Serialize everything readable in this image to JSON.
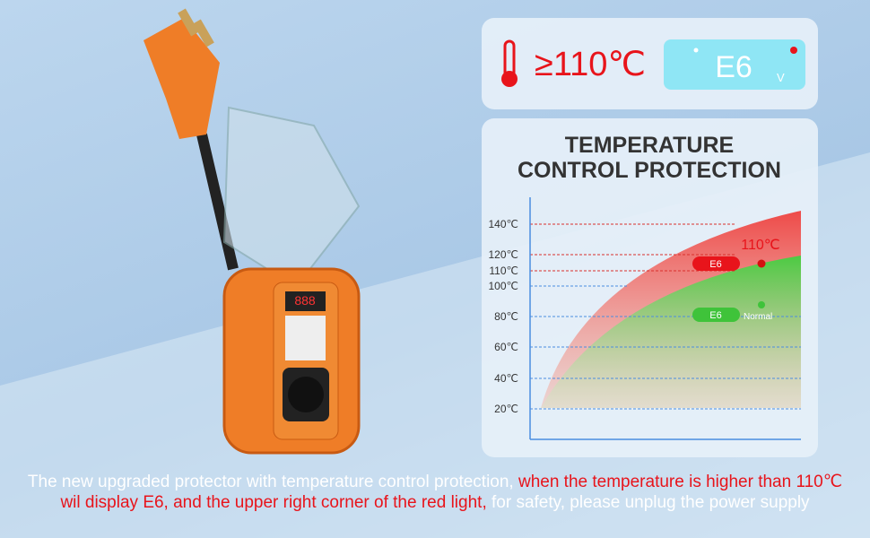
{
  "header": {
    "temperature": "≥110℃",
    "display_code": "E6",
    "display_unit": "V"
  },
  "panel": {
    "title_lines": [
      "TEMPERATURE",
      "CONTROL PROTECTION"
    ],
    "axis_labels": [
      "140℃",
      "120℃",
      "110℃",
      "100℃",
      "80℃",
      "60℃",
      "40℃",
      "20℃"
    ],
    "alarm": {
      "code": "E6",
      "temperature": "110℃"
    },
    "normal": {
      "code": "E6",
      "status": "Normal"
    }
  },
  "device": {
    "screen": "888"
  },
  "caption": {
    "segments": [
      "The new upgraded protector with temperature control protection, ",
      "when the temperature is higher than 110℃ wil display E6, and the upper right corner of the red light,",
      " for safety, please unplug the power supply"
    ]
  }
}
